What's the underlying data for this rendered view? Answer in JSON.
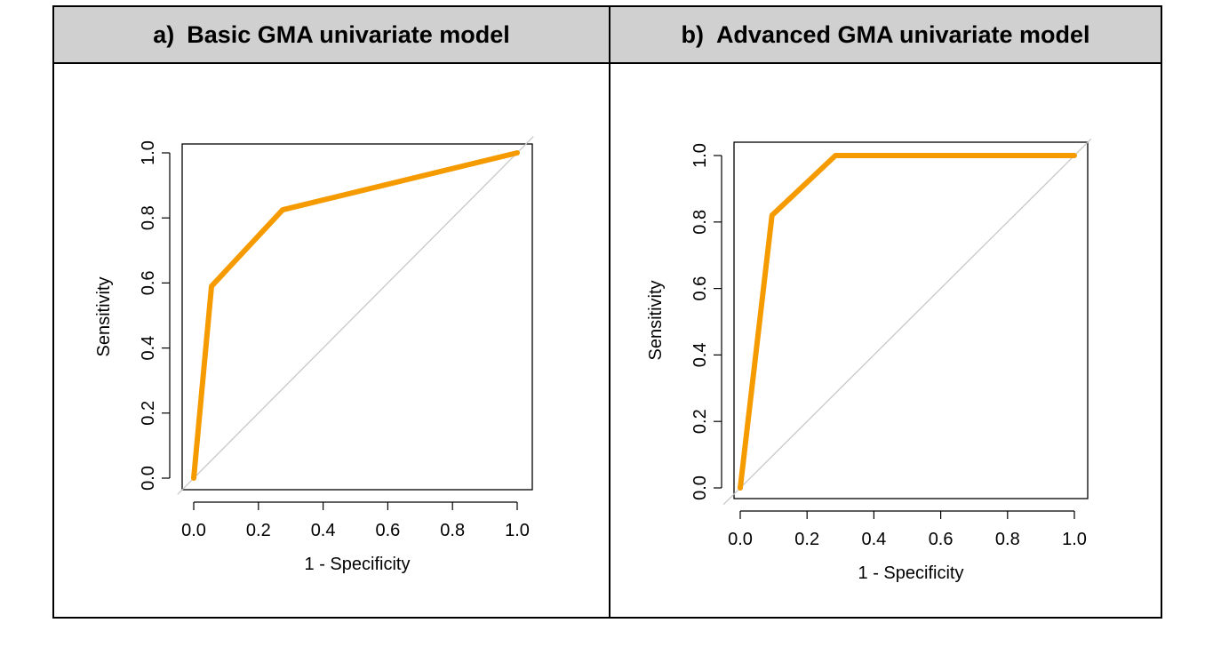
{
  "panels": [
    {
      "label": "a)",
      "title": "Basic GMA univariate model"
    },
    {
      "label": "b)",
      "title": "Advanced GMA univariate model"
    }
  ],
  "colors": {
    "roc": "#f59b00",
    "diagonal": "#c8c8c8",
    "axis": "#000000",
    "header_bg": "#d0d0d0"
  },
  "chart_data": [
    {
      "type": "line",
      "title": "Basic GMA univariate model",
      "xlabel": "1 - Specificity",
      "ylabel": "Sensitivity",
      "xlim": [
        0,
        1
      ],
      "ylim": [
        0,
        1
      ],
      "xticks": [
        "0.0",
        "0.2",
        "0.4",
        "0.6",
        "0.8",
        "1.0"
      ],
      "yticks": [
        "0.0",
        "0.2",
        "0.4",
        "0.6",
        "0.8",
        "1.0"
      ],
      "grid": false,
      "series": [
        {
          "x": [
            0.0,
            0.055,
            0.275,
            1.0
          ],
          "y": [
            0.0,
            0.59,
            0.825,
            1.0
          ]
        }
      ],
      "reference_line": {
        "x": [
          0,
          1
        ],
        "y": [
          0,
          1
        ]
      }
    },
    {
      "type": "line",
      "title": "Advanced GMA univariate model",
      "xlabel": "1 - Specificity",
      "ylabel": "Sensitivity",
      "xlim": [
        0,
        1
      ],
      "ylim": [
        0,
        1
      ],
      "xticks": [
        "0.0",
        "0.2",
        "0.4",
        "0.6",
        "0.8",
        "1.0"
      ],
      "yticks": [
        "0.0",
        "0.2",
        "0.4",
        "0.6",
        "0.8",
        "1.0"
      ],
      "grid": false,
      "series": [
        {
          "x": [
            0.0,
            0.095,
            0.285,
            1.0
          ],
          "y": [
            0.0,
            0.82,
            1.0,
            1.0
          ]
        }
      ],
      "reference_line": {
        "x": [
          0,
          1
        ],
        "y": [
          0,
          1
        ]
      }
    }
  ]
}
